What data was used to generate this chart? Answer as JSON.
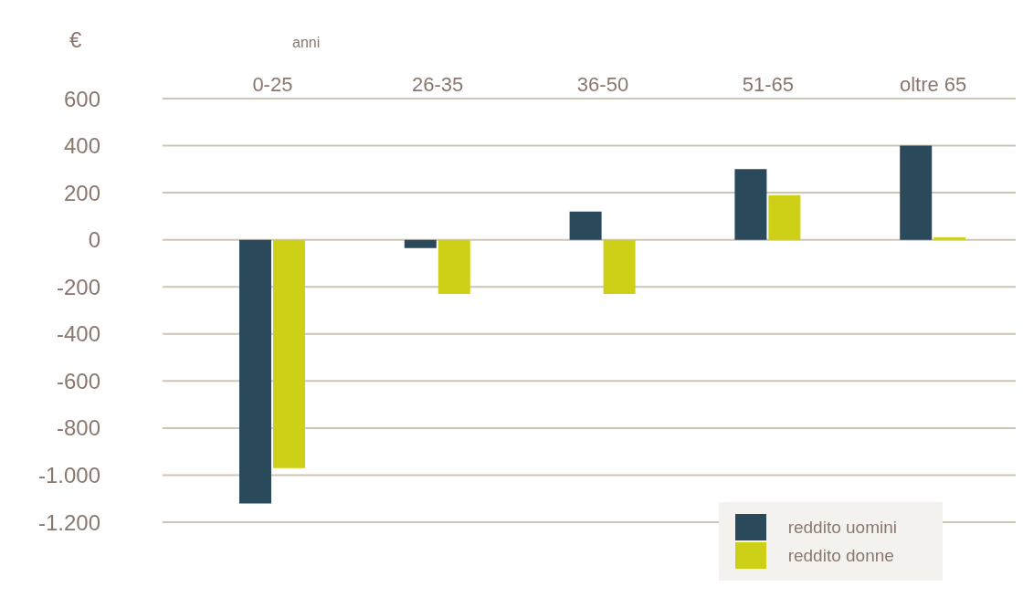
{
  "chart_data": {
    "type": "bar",
    "ylabel": "€",
    "annotations": [
      "anni"
    ],
    "categories": [
      "0-25",
      "26-35",
      "36-50",
      "51-65",
      "oltre 65"
    ],
    "series": [
      {
        "name": "reddito uomini",
        "color": "#2a4a5c",
        "values": [
          -1120,
          -35,
          120,
          300,
          400
        ]
      },
      {
        "name": "reddito donne",
        "color": "#cdd017",
        "values": [
          -970,
          -230,
          -230,
          190,
          10
        ]
      }
    ],
    "ylim": [
      -1200,
      600
    ],
    "yticks": [
      {
        "value": -1200,
        "label": "-1.200"
      },
      {
        "value": -1000,
        "label": "-1.000"
      },
      -800,
      -600,
      -400,
      -200,
      0,
      200,
      400,
      600
    ],
    "grid": "y",
    "legend": "bottom right"
  }
}
